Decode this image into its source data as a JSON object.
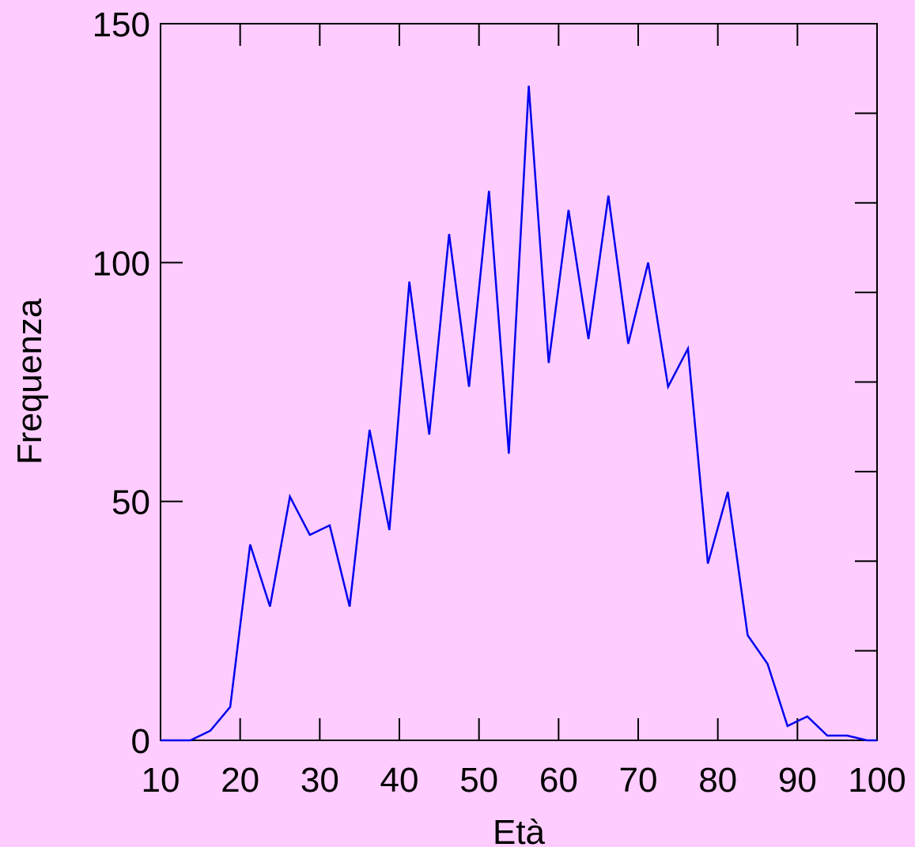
{
  "chart_data": {
    "type": "line",
    "title": "",
    "xlabel": "Età",
    "ylabel": "Frequenza",
    "xlim": [
      10,
      100
    ],
    "ylim": [
      0,
      150
    ],
    "xticks": [
      10,
      20,
      30,
      40,
      50,
      60,
      70,
      80,
      90,
      100
    ],
    "xtick_labels": [
      "10",
      "20",
      "30",
      "40",
      "50",
      "60",
      "70",
      "80",
      "90",
      "100"
    ],
    "yticks_labeled": [
      0,
      50,
      100,
      150
    ],
    "ytick_labels": [
      "0",
      "50",
      "100",
      "150"
    ],
    "yticks_minor_right": [
      0,
      18.75,
      37.5,
      56.25,
      75,
      93.75,
      112.5,
      131.25,
      150
    ],
    "grid": false,
    "background": "#ffccff",
    "series": [
      {
        "color": "#0000ee",
        "x": [
          10,
          13.75,
          16.25,
          18.75,
          21.25,
          23.75,
          26.25,
          28.75,
          31.25,
          33.75,
          36.25,
          38.75,
          41.25,
          43.75,
          46.25,
          48.75,
          51.25,
          53.75,
          56.25,
          58.75,
          61.25,
          63.75,
          66.25,
          68.75,
          71.25,
          73.75,
          76.25,
          78.75,
          81.25,
          83.75,
          86.25,
          88.75,
          90,
          91.25,
          93.75,
          96.25,
          98.75,
          100
        ],
        "y": [
          0,
          0,
          2,
          7,
          41,
          28,
          51,
          43,
          45,
          28,
          65,
          44,
          96,
          64,
          106,
          74,
          115,
          60,
          137,
          79,
          111,
          84,
          114,
          83,
          100,
          74,
          82,
          37,
          52,
          22,
          16,
          3,
          4,
          5,
          1,
          1,
          0,
          0
        ]
      }
    ]
  }
}
